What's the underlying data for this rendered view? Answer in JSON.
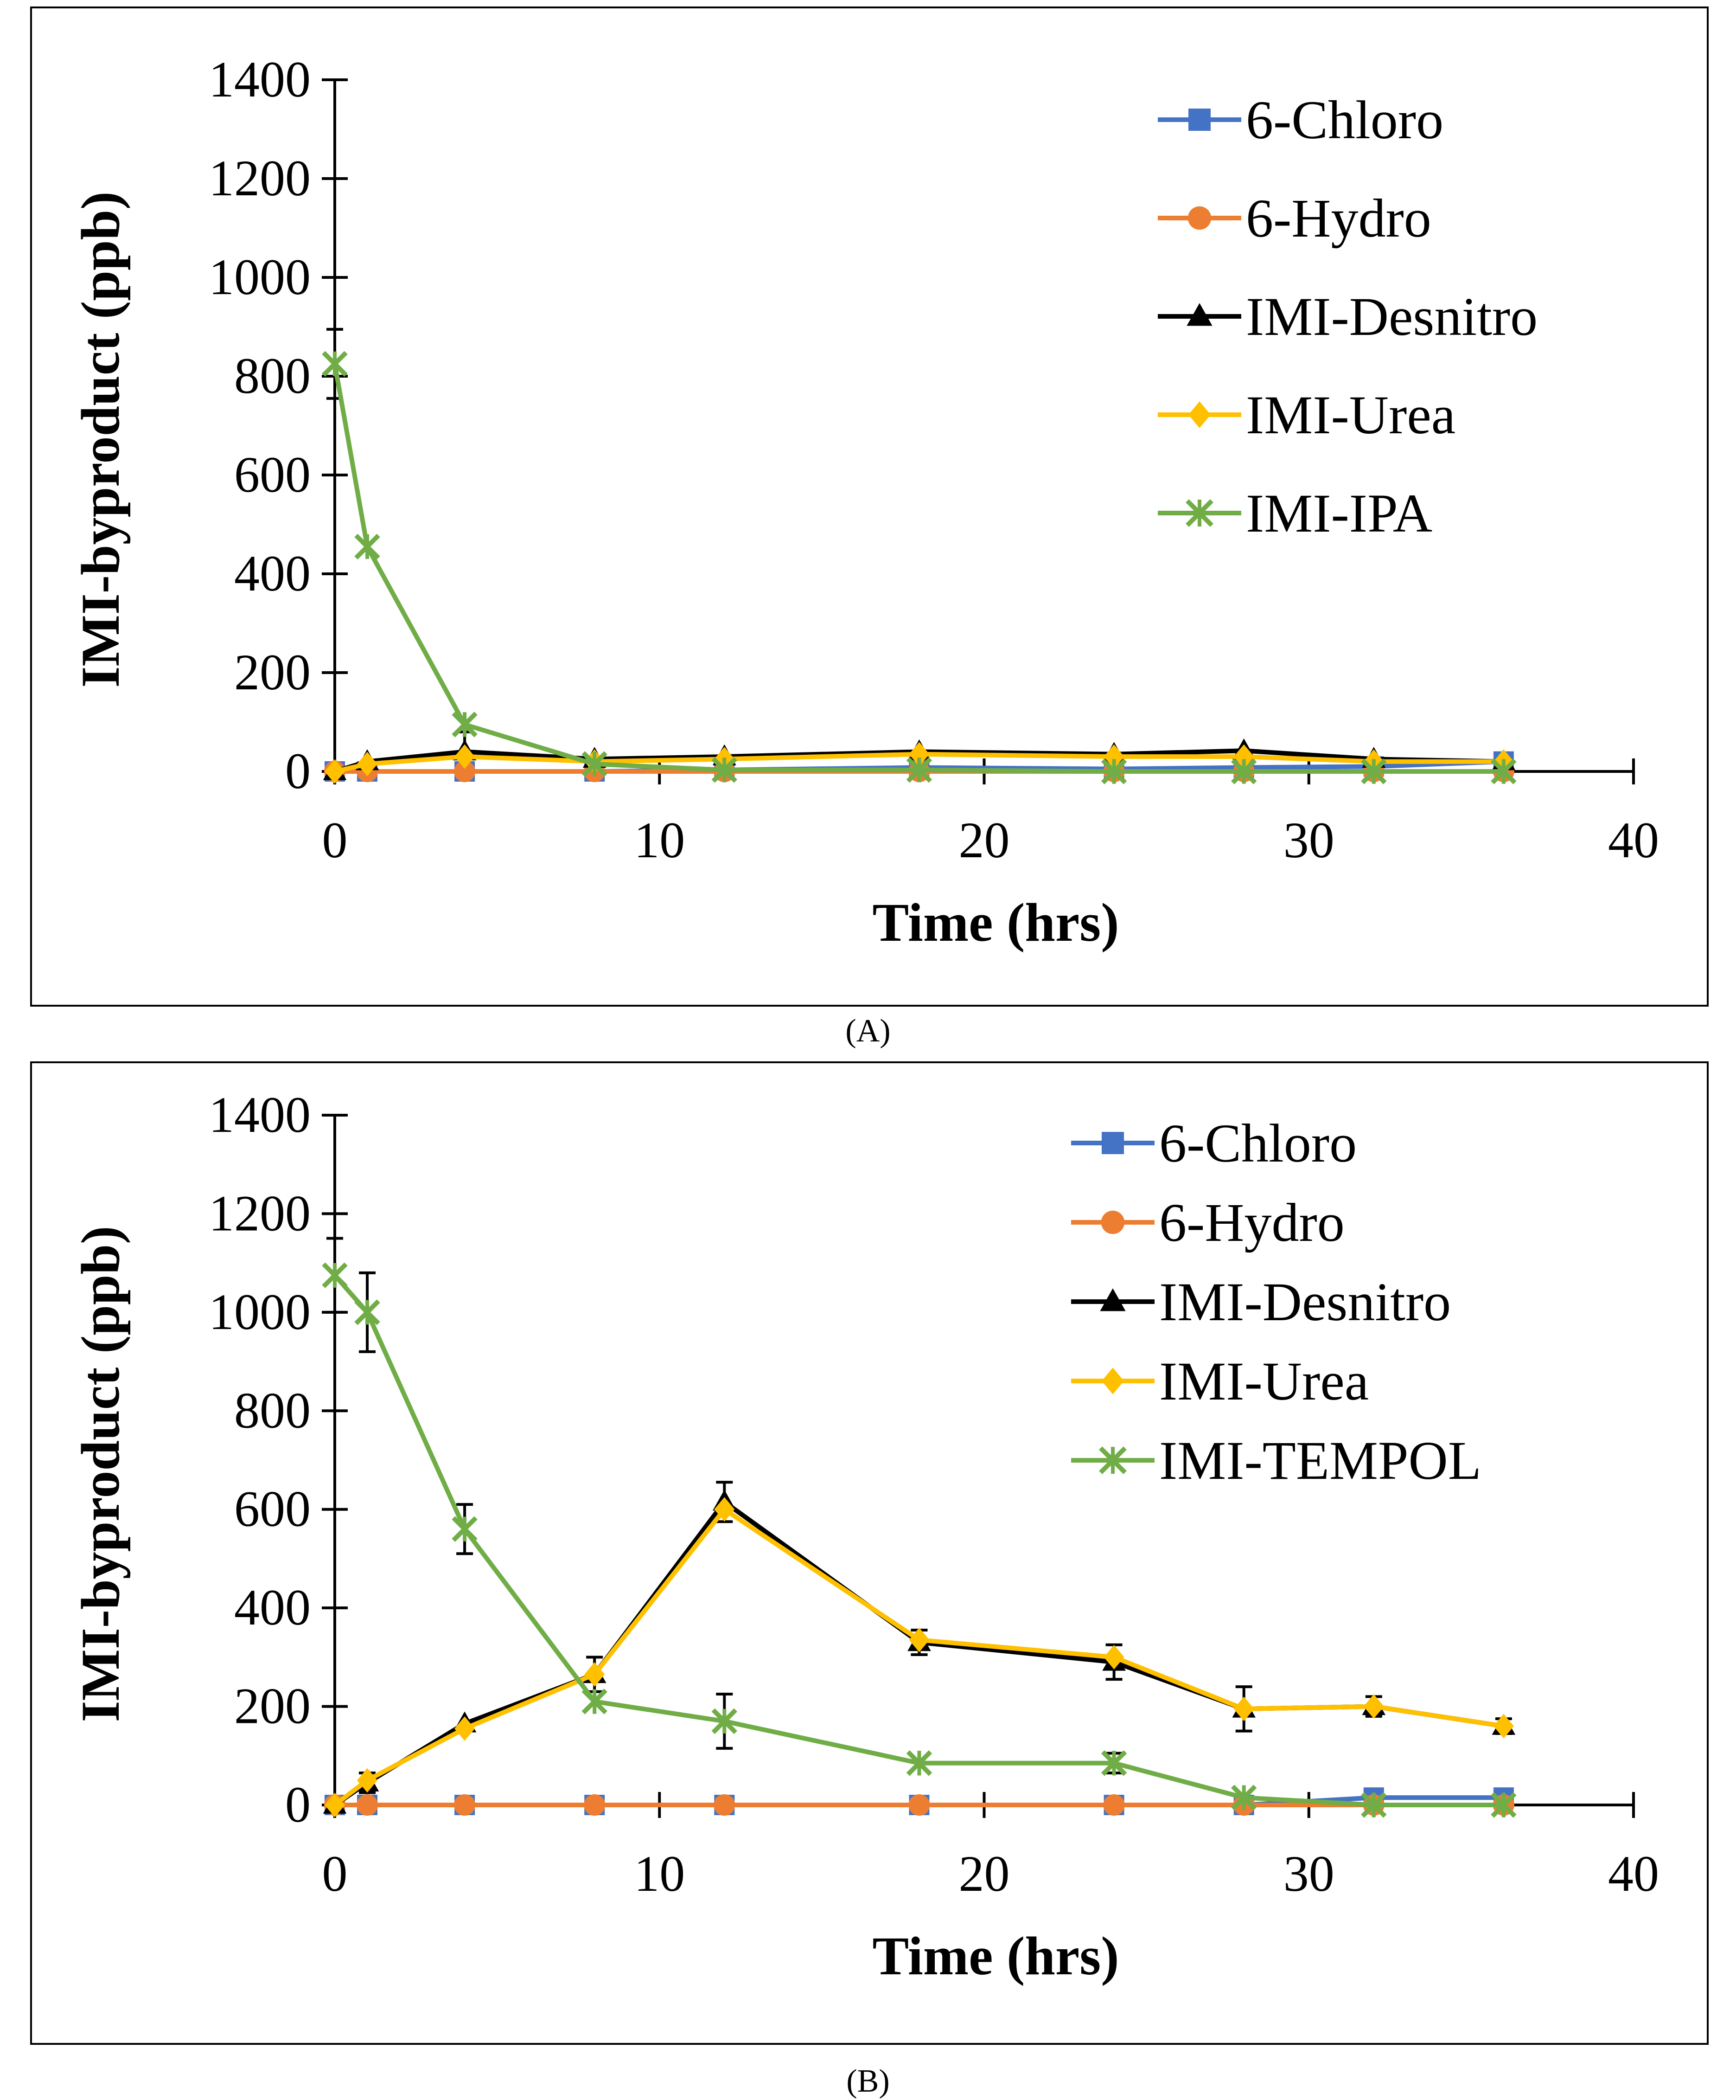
{
  "panels": [
    {
      "caption": "(A)"
    },
    {
      "caption": "(B)"
    }
  ],
  "chart_data": [
    {
      "type": "line",
      "panel": "A",
      "xlabel": "Time (hrs)",
      "ylabel": "IMI-byproduct (ppb)",
      "xlim": [
        0,
        40
      ],
      "ylim": [
        0,
        1400
      ],
      "xticks": [
        0,
        10,
        20,
        30,
        40
      ],
      "yticks": [
        0,
        200,
        400,
        600,
        800,
        1000,
        1200,
        1400
      ],
      "grid": false,
      "legend_position": "top-right",
      "x": [
        0,
        1,
        4,
        8,
        12,
        18,
        24,
        28,
        32,
        36
      ],
      "series": [
        {
          "name": "6-Chloro",
          "color": "#4472C4",
          "marker": "square",
          "values": [
            0,
            0,
            0,
            0,
            3,
            8,
            5,
            8,
            10,
            20
          ]
        },
        {
          "name": "6-Hydro",
          "color": "#ED7D31",
          "marker": "circle",
          "values": [
            0,
            0,
            0,
            0,
            0,
            0,
            0,
            0,
            0,
            0
          ]
        },
        {
          "name": "IMI-Desnitro",
          "color": "#000000",
          "marker": "triangle",
          "values": [
            0,
            20,
            40,
            25,
            30,
            40,
            35,
            42,
            25,
            20
          ],
          "error": [
            0,
            0,
            40,
            0,
            0,
            0,
            0,
            0,
            0,
            0
          ]
        },
        {
          "name": "IMI-Urea",
          "color": "#FFC000",
          "marker": "diamond",
          "values": [
            0,
            15,
            30,
            20,
            25,
            35,
            30,
            30,
            20,
            20
          ]
        },
        {
          "name": "IMI-IPA",
          "color": "#70AD47",
          "marker": "star",
          "values": [
            825,
            455,
            95,
            15,
            3,
            3,
            0,
            0,
            0,
            0
          ],
          "error": [
            70,
            0,
            0,
            0,
            0,
            0,
            0,
            0,
            0,
            0
          ]
        }
      ]
    },
    {
      "type": "line",
      "panel": "B",
      "xlabel": "Time (hrs)",
      "ylabel": "IMI-byproduct (ppb)",
      "xlim": [
        0,
        40
      ],
      "ylim": [
        0,
        1400
      ],
      "xticks": [
        0,
        10,
        20,
        30,
        40
      ],
      "yticks": [
        0,
        200,
        400,
        600,
        800,
        1000,
        1200,
        1400
      ],
      "grid": false,
      "legend_position": "top-right",
      "x": [
        0,
        1,
        4,
        8,
        12,
        18,
        24,
        28,
        32,
        36
      ],
      "series": [
        {
          "name": "6-Chloro",
          "color": "#4472C4",
          "marker": "square",
          "values": [
            0,
            0,
            0,
            0,
            0,
            0,
            0,
            0,
            15,
            15
          ]
        },
        {
          "name": "6-Hydro",
          "color": "#ED7D31",
          "marker": "circle",
          "values": [
            0,
            0,
            0,
            0,
            0,
            0,
            0,
            0,
            0,
            0
          ]
        },
        {
          "name": "IMI-Desnitro",
          "color": "#000000",
          "marker": "triangle",
          "values": [
            0,
            45,
            165,
            265,
            615,
            330,
            290,
            195,
            200,
            160
          ],
          "error": [
            0,
            20,
            0,
            35,
            40,
            25,
            35,
            45,
            20,
            15
          ]
        },
        {
          "name": "IMI-Urea",
          "color": "#FFC000",
          "marker": "diamond",
          "values": [
            0,
            50,
            155,
            265,
            600,
            335,
            300,
            195,
            200,
            160
          ]
        },
        {
          "name": "IMI-TEMPOL",
          "color": "#70AD47",
          "marker": "star",
          "values": [
            1075,
            1000,
            560,
            210,
            170,
            85,
            85,
            15,
            0,
            0
          ],
          "error": [
            75,
            80,
            50,
            0,
            55,
            0,
            20,
            0,
            0,
            0
          ]
        }
      ]
    }
  ]
}
